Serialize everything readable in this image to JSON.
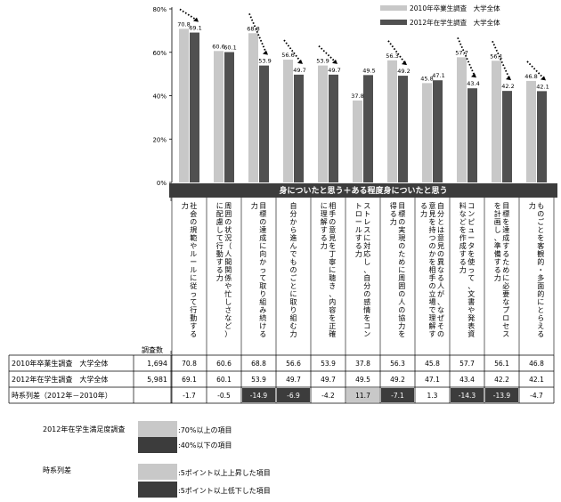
{
  "chart_data": {
    "type": "bar",
    "y_axis": {
      "ticks": [
        "0%",
        "20%",
        "40%",
        "60%",
        "80%"
      ],
      "ylim": [
        0,
        80
      ]
    },
    "legend": {
      "position": "top-right"
    },
    "band_title": "身についたと思う＋ある程度身についたと思う",
    "categories": [
      "社会の規範やルールに従って行動する力",
      "周囲の状況（人間関係や忙しさなど）に配慮して行動する力",
      "目標の達成に向かって取り組み続ける力",
      "自分から進んでものごとに取り組む力",
      "相手の意見を丁寧に聴き、内容を正確に理解する力",
      "ストレスに対応し、自分の感情をコントロールする力",
      "目標の実現のために周囲の人の協力を得る力",
      "自分とは意見の異なる人が、なぜその意見を持つのかを相手の立場で理解する力",
      "コンピュータを使って、文書や発表資料などを作成する力",
      "目標を達成するために必要なプロセスを計画し、準備する力",
      "ものごとを客観的・多面的にとらえる力"
    ],
    "series": [
      {
        "name": "2010年卒業生調査　大学全体",
        "values": [
          70.8,
          60.6,
          68.8,
          56.6,
          53.9,
          37.8,
          56.3,
          45.8,
          57.7,
          56.1,
          46.8
        ]
      },
      {
        "name": "2012年在学生調査　大学全体",
        "values": [
          69.1,
          60.1,
          53.9,
          49.7,
          49.7,
          49.5,
          49.2,
          47.1,
          43.4,
          42.2,
          42.1
        ]
      }
    ],
    "value_labels": {
      "2010": [
        "70.8",
        "60.6",
        "68.8",
        "56.6",
        "53.9",
        "37.8",
        "56.3",
        "45.8",
        "57.7",
        "56.1",
        "46.8"
      ],
      "2012": [
        "69.1",
        "60.1",
        "53.9",
        "49.7",
        "49.7",
        "49.5",
        "49.2",
        "47.1",
        "43.4",
        "42.2",
        "42.1"
      ],
      "diff": [
        "-1.7",
        "-0.5",
        "-14.9",
        "-6.9",
        "-4.2",
        "11.7",
        "-7.1",
        "1.3",
        "-14.3",
        "-13.9",
        "-4.7"
      ]
    },
    "diff_values": [
      -1.7,
      -0.5,
      -14.9,
      -6.9,
      -4.2,
      11.7,
      -7.1,
      1.3,
      -14.3,
      -13.9,
      -4.7
    ],
    "decline_arrows": [
      true,
      false,
      true,
      true,
      true,
      false,
      true,
      false,
      true,
      true,
      true
    ],
    "table": {
      "n_header": "調査数",
      "rows": [
        {
          "label": "2010年卒業生調査　大学全体",
          "n": "1,694"
        },
        {
          "label": "2012年在学生調査　大学全体",
          "n": "5,981"
        },
        {
          "label": "時系列差（2012年－2010年）",
          "n": ""
        }
      ]
    },
    "colors": {
      "series_2010": "#c8c8c8",
      "series_2012": "#505050",
      "band": "#3c3c3c",
      "highlight_light": "#c8c8c8",
      "highlight_dark": "#3c3c3c"
    }
  },
  "key": {
    "satisfaction_title": "2012年在学生満足度調査",
    "satisfaction_items": [
      ":70%以上の項目",
      ":40%以下の項目"
    ],
    "diff_title": "時系列差",
    "diff_items": [
      ":5ポイント以上上昇した項目",
      ":5ポイント以上低下した項目"
    ]
  }
}
